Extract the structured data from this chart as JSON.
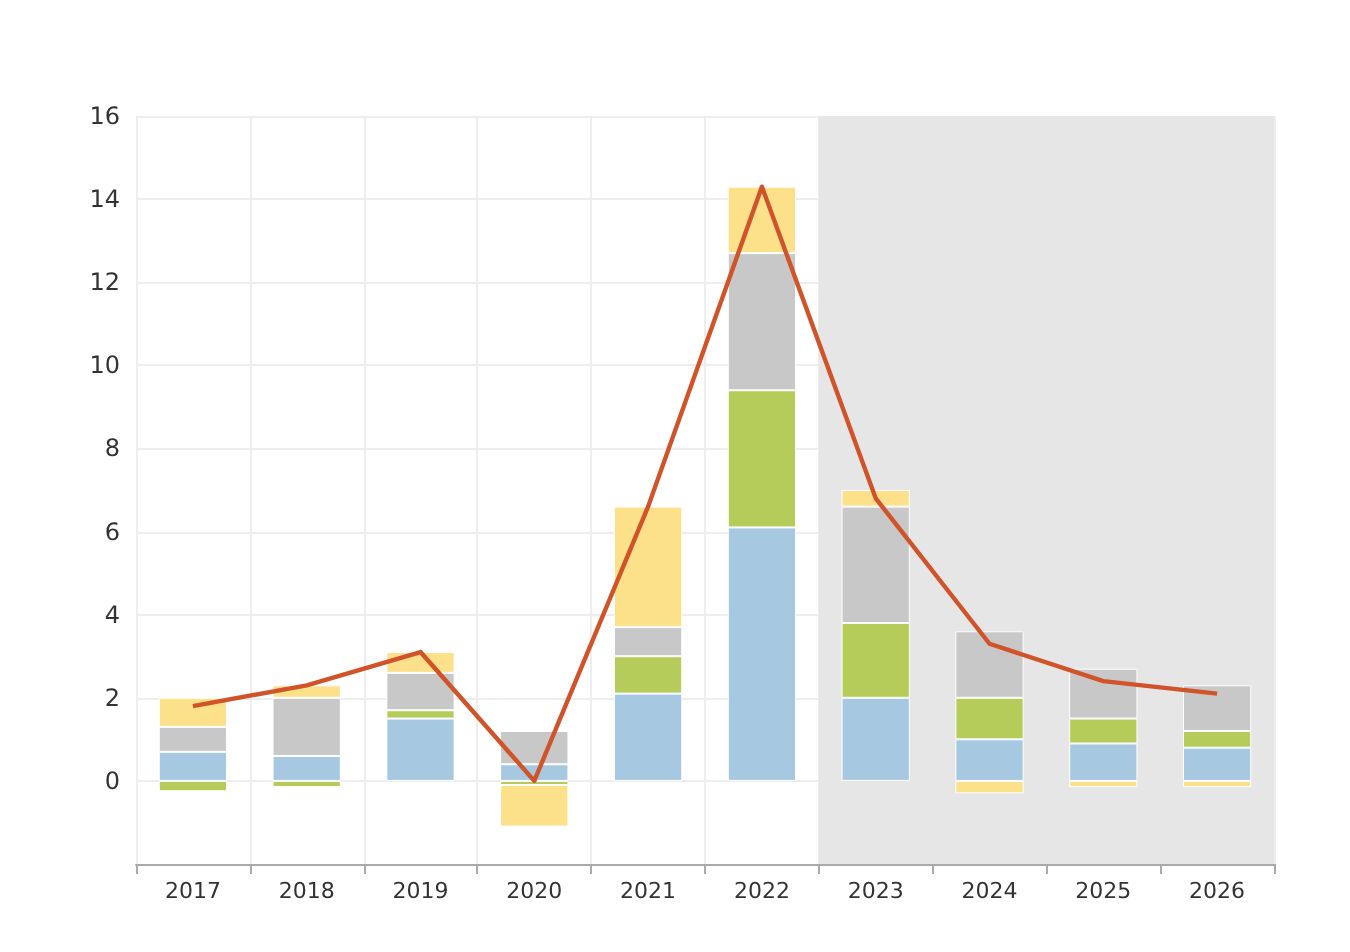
{
  "chart_data": {
    "type": "bar",
    "stacked": true,
    "categories": [
      "2017",
      "2018",
      "2019",
      "2020",
      "2021",
      "2022",
      "2023",
      "2024",
      "2025",
      "2026"
    ],
    "series": [
      {
        "color": "#a6c8e0",
        "values": [
          0.7,
          0.6,
          1.5,
          0.4,
          2.1,
          6.1,
          2.0,
          1.0,
          0.9,
          0.8
        ]
      },
      {
        "color": "#b5cc5a",
        "values": [
          -0.25,
          -0.15,
          0.2,
          -0.1,
          0.9,
          3.3,
          1.8,
          1.0,
          0.6,
          0.4
        ]
      },
      {
        "color": "#c8c8c8",
        "values": [
          0.6,
          1.4,
          0.9,
          0.8,
          0.7,
          3.3,
          2.8,
          1.6,
          1.2,
          1.1
        ]
      },
      {
        "color": "#fce08a",
        "values": [
          0.7,
          0.3,
          0.5,
          -1.0,
          2.9,
          1.6,
          0.4,
          -0.3,
          -0.15,
          -0.15
        ]
      },
      {
        "type": "line",
        "color": "#d0532a",
        "values": [
          1.8,
          2.3,
          3.1,
          0.0,
          6.6,
          14.3,
          6.8,
          3.3,
          2.4,
          2.1
        ]
      }
    ],
    "ylim": [
      -2,
      16
    ],
    "yticks": [
      0,
      2,
      4,
      6,
      8,
      10,
      12,
      14,
      16
    ],
    "grid": true,
    "marker": "none",
    "bands": [
      {
        "axis": "x",
        "from": "2023",
        "to": "2026",
        "color": "#e6e6e6"
      }
    ]
  }
}
